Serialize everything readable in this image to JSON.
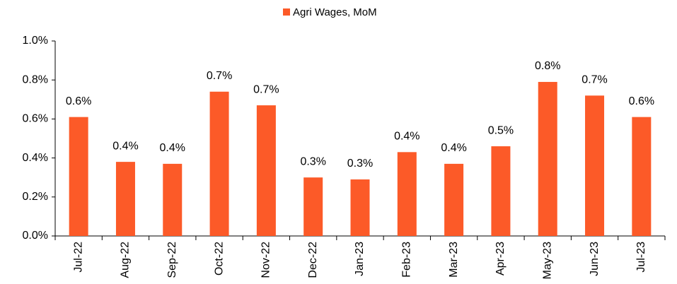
{
  "chart_data": {
    "type": "bar",
    "series": [
      {
        "name": "Agri Wages, MoM",
        "color": "#fc5a28",
        "values": [
          0.61,
          0.38,
          0.37,
          0.74,
          0.67,
          0.3,
          0.29,
          0.43,
          0.37,
          0.46,
          0.79,
          0.72,
          0.61
        ],
        "value_labels": [
          "0.6%",
          "0.4%",
          "0.4%",
          "0.7%",
          "0.7%",
          "0.3%",
          "0.3%",
          "0.4%",
          "0.4%",
          "0.5%",
          "0.8%",
          "0.7%",
          "0.6%"
        ]
      }
    ],
    "categories": [
      "Jul-22",
      "Aug-22",
      "Sep-22",
      "Oct-22",
      "Nov-22",
      "Dec-22",
      "Jan-23",
      "Feb-23",
      "Mar-23",
      "Apr-23",
      "May-23",
      "Jun-23",
      "Jul-23"
    ],
    "ylim": [
      0,
      1.0
    ],
    "yticks": [
      {
        "value": 0,
        "label": "0.0%"
      },
      {
        "value": 0.2,
        "label": "0.2%"
      },
      {
        "value": 0.4,
        "label": "0.4%"
      },
      {
        "value": 0.6,
        "label": "0.6%"
      },
      {
        "value": 0.8,
        "label": "0.8%"
      },
      {
        "value": 1.0,
        "label": "1.0%"
      }
    ],
    "legend": "top",
    "grid": false
  }
}
